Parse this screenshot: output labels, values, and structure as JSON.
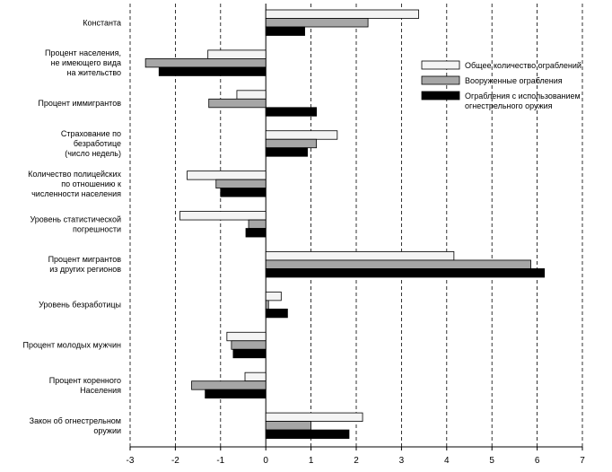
{
  "chart_data": {
    "type": "bar",
    "orientation": "horizontal",
    "title": "",
    "xlabel": "",
    "ylabel": "",
    "xlim": [
      -3,
      7
    ],
    "xticks": [
      -3,
      -2,
      -1,
      0,
      1,
      2,
      3,
      4,
      5,
      6,
      7
    ],
    "grid": "vertical dashed",
    "legend_position": "right",
    "categories": [
      [
        "Константа"
      ],
      [
        "Процент населения,",
        "не имеющего вида",
        "на жительство"
      ],
      [
        "Процент иммигрантов"
      ],
      [
        "Страхование по",
        "безработице",
        "(число недель)"
      ],
      [
        "Количество полицейских",
        "по отношению к",
        "численности населения"
      ],
      [
        "Уровень статистической",
        "погрешности"
      ],
      [
        "Процент мигрантов",
        "из других регионов"
      ],
      [
        "Уровень безработицы"
      ],
      [
        "Процент молодых мужчин"
      ],
      [
        "Процент коренного",
        "Населения"
      ],
      [
        "Закон об огнестрельном",
        "оружии"
      ]
    ],
    "series": [
      {
        "name": "Общее количество ограблений",
        "color": "#f4f4f4",
        "values": [
          3.38,
          -1.28,
          -0.64,
          1.58,
          -1.74,
          -1.9,
          4.16,
          0.34,
          -0.86,
          -0.46,
          2.14
        ]
      },
      {
        "name": "Вооруженные ограбления",
        "color": "#a6a6a6",
        "values": [
          2.26,
          -2.66,
          -1.26,
          1.12,
          -1.1,
          -0.38,
          5.86,
          0.06,
          -0.76,
          -1.64,
          1.0
        ]
      },
      {
        "name": "Ограбления с использованием огнестрельного оружия",
        "color": "#000000",
        "values": [
          0.86,
          -2.36,
          1.12,
          0.92,
          -1.0,
          -0.44,
          6.16,
          0.48,
          -0.72,
          -1.34,
          1.84
        ]
      }
    ]
  }
}
